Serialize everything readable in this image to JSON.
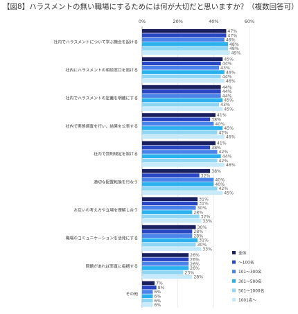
{
  "title": "【図8】ハラスメントの無い職場にするためには何が大切だと思いますか？（複数回答可）",
  "colors": {
    "series": [
      "#1a1f5e",
      "#2947c2",
      "#4a83ea",
      "#2bb2ee",
      "#8fd6f5",
      "#c7eafb"
    ]
  },
  "chart_data": {
    "type": "bar",
    "orientation": "horizontal",
    "xlim": [
      0,
      60
    ],
    "xticks": [
      "0%",
      "20%",
      "40%",
      "60%"
    ],
    "grid": true,
    "legend_position": "right",
    "value_suffix": "%",
    "categories": [
      "社内でハラスメントについて学ぶ機会を設ける",
      "社内にハラスメントの相談窓口を設ける",
      "社内でハラスメントの定義を明確にする",
      "社内で実態調査を行い、結果を公表する",
      "社内で罰則規定を設ける",
      "適切な配置転換を行なう",
      "お互いの考え方や立場を理解し合う",
      "職場のコミュニケーションを活発にする",
      "問題があれば率直に指摘する",
      "その他"
    ],
    "series": [
      {
        "name": "全体",
        "values": [
          47,
          45,
          44,
          41,
          41,
          38,
          31,
          30,
          26,
          7
        ]
      },
      {
        "name": "～100名",
        "values": [
          47,
          44,
          44,
          38,
          38,
          32,
          31,
          28,
          26,
          8
        ]
      },
      {
        "name": "101～300名",
        "values": [
          46,
          43,
          44,
          40,
          42,
          40,
          30,
          28,
          26,
          6
        ]
      },
      {
        "name": "301～500名",
        "values": [
          48,
          46,
          45,
          45,
          44,
          40,
          28,
          31,
          26,
          6
        ]
      },
      {
        "name": "501～1000名",
        "values": [
          48,
          44,
          43,
          42,
          42,
          42,
          32,
          30,
          23,
          6
        ]
      },
      {
        "name": "1001名～",
        "values": [
          49,
          46,
          45,
          46,
          46,
          45,
          33,
          33,
          28,
          6
        ]
      }
    ]
  }
}
